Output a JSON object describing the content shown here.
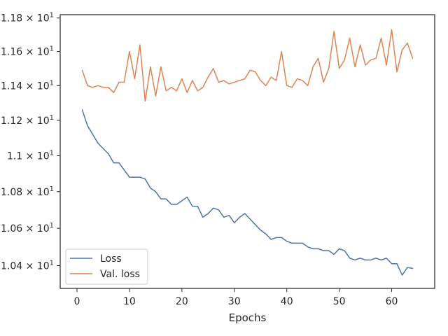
{
  "chart_data": {
    "type": "line",
    "title": "",
    "xlabel": "Epochs",
    "ylabel": "",
    "yscale": "log",
    "xlim": [
      -3.2,
      68.2
    ],
    "ylim": [
      10.28,
      11.82
    ],
    "grid": false,
    "legend_position": "lower-left",
    "x_ticks": [
      0,
      10,
      20,
      30,
      40,
      50,
      60
    ],
    "y_ticks": [
      {
        "value": 10.4,
        "mantissa": "1.04",
        "times": "×",
        "base": "10",
        "exp": "1"
      },
      {
        "value": 10.6,
        "mantissa": "1.06",
        "times": "×",
        "base": "10",
        "exp": "1"
      },
      {
        "value": 10.8,
        "mantissa": "1.08",
        "times": "×",
        "base": "10",
        "exp": "1"
      },
      {
        "value": 11.0,
        "mantissa": "1.1",
        "times": "×",
        "base": "10",
        "exp": "1"
      },
      {
        "value": 11.2,
        "mantissa": "1.12",
        "times": "×",
        "base": "10",
        "exp": "1"
      },
      {
        "value": 11.4,
        "mantissa": "1.14",
        "times": "×",
        "base": "10",
        "exp": "1"
      },
      {
        "value": 11.6,
        "mantissa": "1.16",
        "times": "×",
        "base": "10",
        "exp": "1"
      },
      {
        "value": 11.8,
        "mantissa": "1.18",
        "times": "×",
        "base": "10",
        "exp": "1"
      }
    ],
    "x": [
      1,
      2,
      3,
      4,
      5,
      6,
      7,
      8,
      9,
      10,
      11,
      12,
      13,
      14,
      15,
      16,
      17,
      18,
      19,
      20,
      21,
      22,
      23,
      24,
      25,
      26,
      27,
      28,
      29,
      30,
      31,
      32,
      33,
      34,
      35,
      36,
      37,
      38,
      39,
      40,
      41,
      42,
      43,
      44,
      45,
      46,
      47,
      48,
      49,
      50,
      51,
      52,
      53,
      54,
      55,
      56,
      57,
      58,
      59,
      60,
      61,
      62,
      63,
      64
    ],
    "series": [
      {
        "name": "Loss",
        "color": "#4c72b0",
        "values": [
          11.26,
          11.17,
          11.12,
          11.07,
          11.04,
          11.01,
          10.96,
          10.96,
          10.92,
          10.88,
          10.88,
          10.88,
          10.87,
          10.82,
          10.8,
          10.76,
          10.76,
          10.73,
          10.73,
          10.75,
          10.77,
          10.72,
          10.72,
          10.66,
          10.68,
          10.71,
          10.7,
          10.66,
          10.67,
          10.63,
          10.66,
          10.68,
          10.65,
          10.62,
          10.59,
          10.57,
          10.54,
          10.55,
          10.55,
          10.53,
          10.52,
          10.52,
          10.52,
          10.5,
          10.49,
          10.49,
          10.48,
          10.48,
          10.46,
          10.49,
          10.48,
          10.44,
          10.43,
          10.44,
          10.43,
          10.43,
          10.44,
          10.43,
          10.44,
          10.41,
          10.41,
          10.35,
          10.39,
          10.385
        ]
      },
      {
        "name": "Val. loss",
        "color": "#dd8452",
        "values": [
          11.49,
          11.4,
          11.39,
          11.4,
          11.39,
          11.39,
          11.36,
          11.42,
          11.42,
          11.6,
          11.44,
          11.64,
          11.31,
          11.51,
          11.34,
          11.51,
          11.37,
          11.39,
          11.37,
          11.44,
          11.36,
          11.43,
          11.37,
          11.39,
          11.45,
          11.5,
          11.42,
          11.43,
          11.41,
          11.42,
          11.43,
          11.44,
          11.49,
          11.48,
          11.43,
          11.4,
          11.45,
          11.43,
          11.6,
          11.4,
          11.39,
          11.44,
          11.43,
          11.4,
          11.51,
          11.56,
          11.42,
          11.5,
          11.72,
          11.5,
          11.55,
          11.68,
          11.51,
          11.64,
          11.52,
          11.55,
          11.56,
          11.68,
          11.52,
          11.73,
          11.48,
          11.61,
          11.65,
          11.56
        ]
      }
    ]
  }
}
